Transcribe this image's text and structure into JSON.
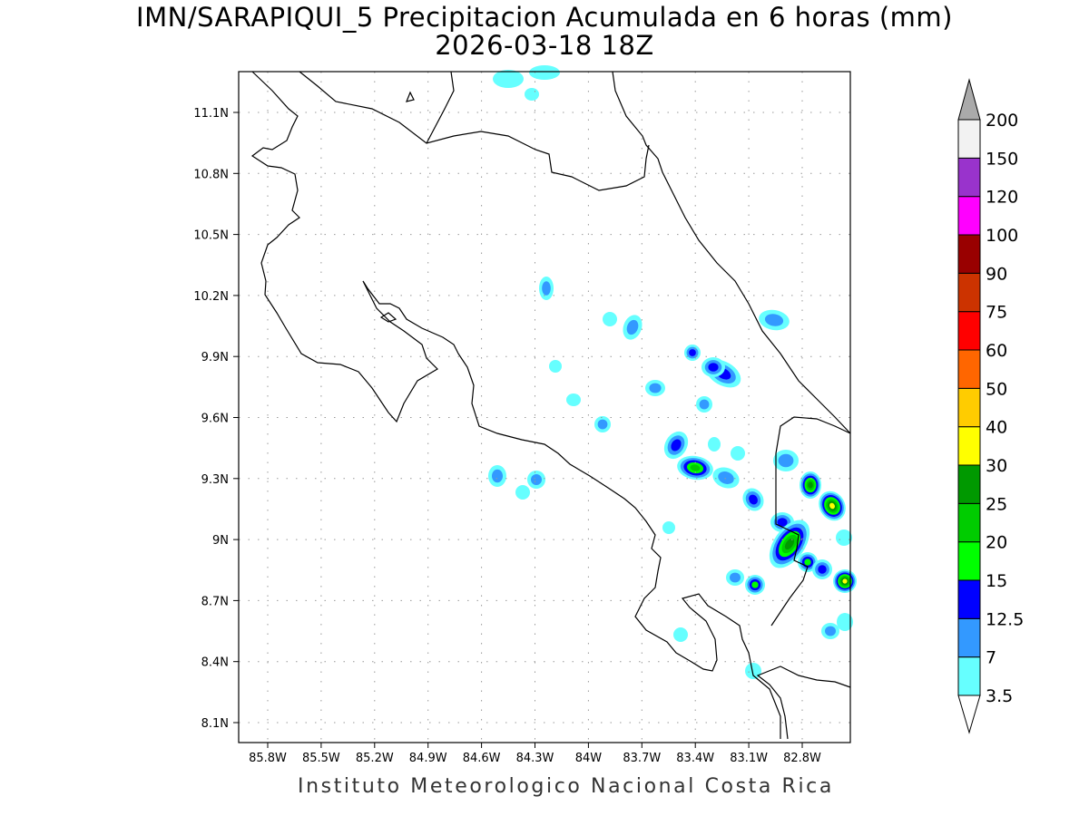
{
  "title": "IMN/SARAPIQUI_5 Precipitacion Acumulada en 6 horas (mm)",
  "subtitle": "2026-03-18 18Z",
  "footer": "Instituto Meteorologico Nacional Costa Rica",
  "lon_ticks": [
    "85.8W",
    "85.5W",
    "85.2W",
    "84.9W",
    "84.6W",
    "84.3W",
    "84W",
    "83.7W",
    "83.4W",
    "83.1W",
    "82.8W"
  ],
  "lat_ticks": [
    "11.1N",
    "10.8N",
    "10.5N",
    "10.2N",
    "9.9N",
    "9.6N",
    "9.3N",
    "9N",
    "8.7N",
    "8.4N",
    "8.1N"
  ],
  "colorbar": {
    "labels": [
      "3.5",
      "7",
      "12.5",
      "15",
      "20",
      "25",
      "30",
      "40",
      "50",
      "60",
      "75",
      "90",
      "100",
      "120",
      "150",
      "200"
    ],
    "colors": [
      "#66ffff",
      "#3399ff",
      "#0000ff",
      "#00ff00",
      "#00cc00",
      "#009900",
      "#ffff00",
      "#ffcc00",
      "#ff6600",
      "#ff0000",
      "#cc3300",
      "#990000",
      "#ff00ff",
      "#9933cc",
      "#f2f2f2"
    ],
    "over_color": "#aaaaaa",
    "under_color": "#ffffff"
  }
}
